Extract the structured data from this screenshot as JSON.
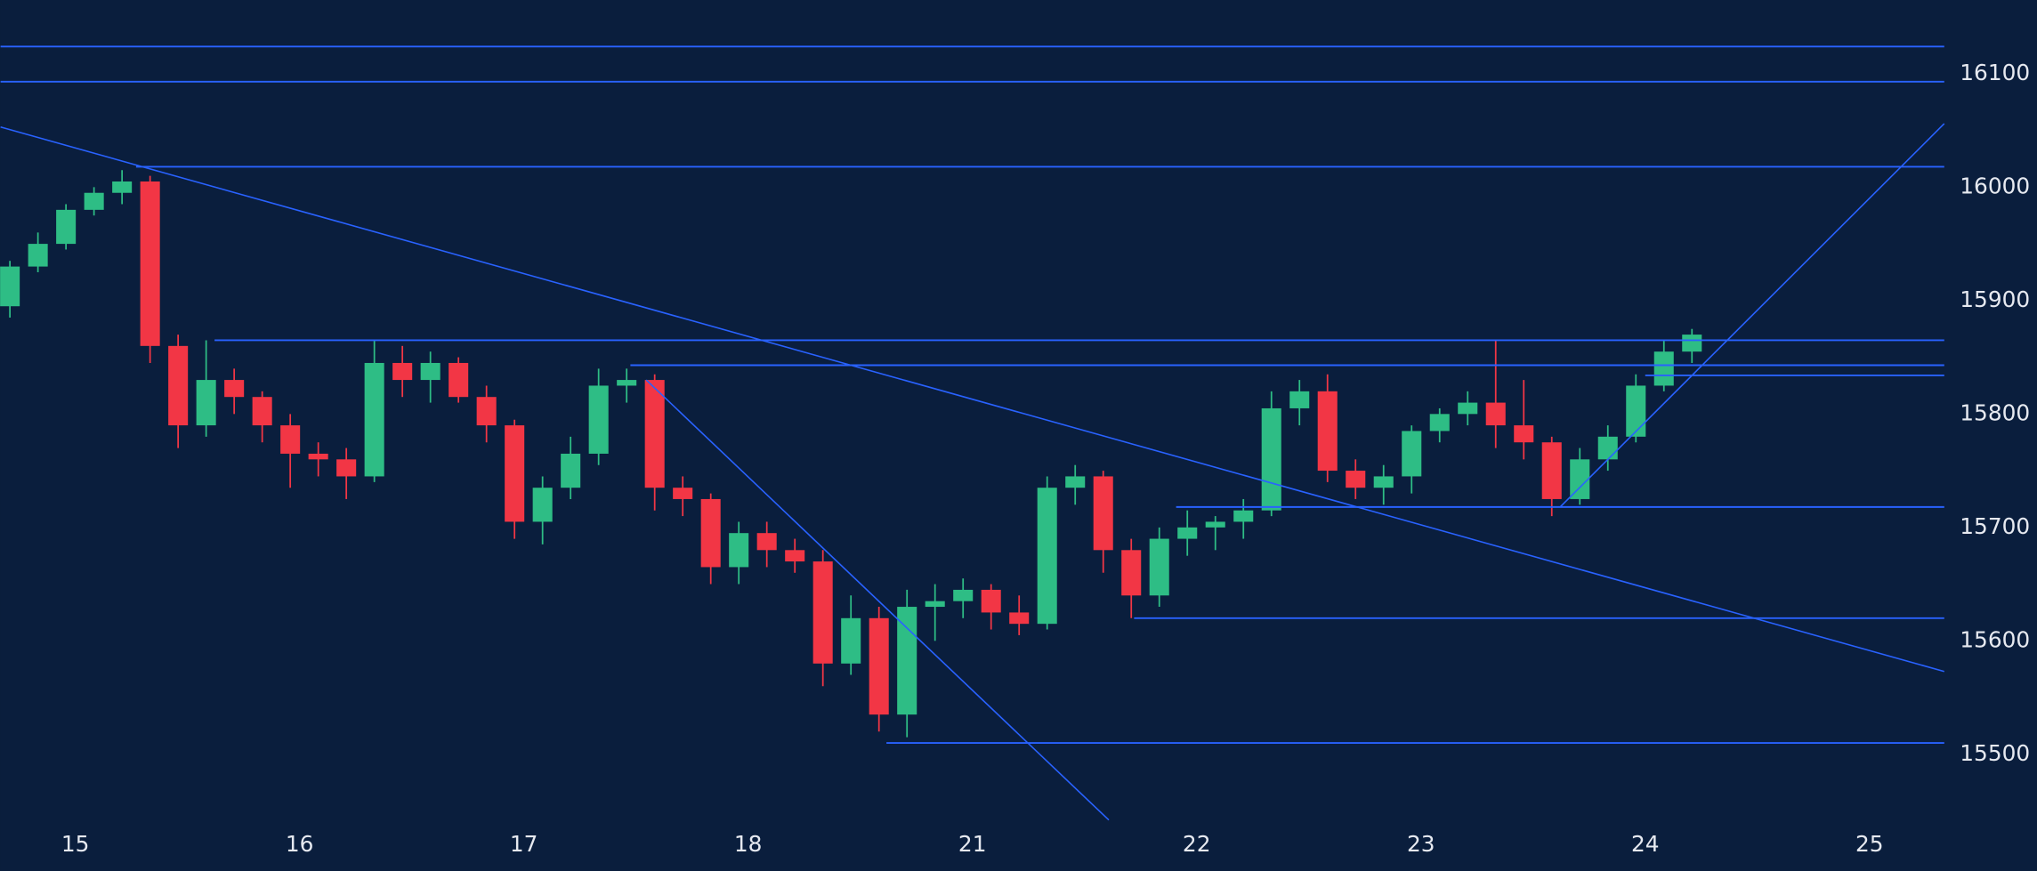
{
  "chart_data": {
    "type": "candlestick",
    "x": [
      -7,
      -4,
      -1,
      2,
      5,
      8,
      11,
      14,
      17,
      20,
      23,
      26,
      29,
      32,
      35,
      38,
      41,
      44,
      47,
      50,
      53,
      56,
      59,
      62,
      65,
      68,
      71,
      74,
      77,
      80,
      83,
      86,
      89,
      92,
      95,
      98,
      101,
      104,
      107,
      110,
      113,
      116,
      119,
      122,
      125,
      128,
      131,
      134,
      137,
      140,
      143,
      146,
      149,
      152,
      155,
      158,
      161,
      164,
      167,
      170,
      173
    ],
    "candles": [
      [
        15895,
        15935,
        15885,
        15930
      ],
      [
        15930,
        15960,
        15925,
        15950
      ],
      [
        15950,
        15985,
        15945,
        15980
      ],
      [
        15980,
        16000,
        15975,
        15995
      ],
      [
        15995,
        16015,
        15985,
        16005
      ],
      [
        16005,
        16010,
        15845,
        15860
      ],
      [
        15860,
        15870,
        15770,
        15790
      ],
      [
        15790,
        15865,
        15780,
        15830
      ],
      [
        15830,
        15840,
        15800,
        15815
      ],
      [
        15815,
        15820,
        15775,
        15790
      ],
      [
        15790,
        15800,
        15735,
        15765
      ],
      [
        15765,
        15775,
        15745,
        15760
      ],
      [
        15760,
        15770,
        15725,
        15745
      ],
      [
        15745,
        15865,
        15740,
        15845
      ],
      [
        15845,
        15860,
        15815,
        15830
      ],
      [
        15830,
        15855,
        15810,
        15845
      ],
      [
        15845,
        15850,
        15810,
        15815
      ],
      [
        15815,
        15825,
        15775,
        15790
      ],
      [
        15790,
        15795,
        15690,
        15705
      ],
      [
        15705,
        15745,
        15685,
        15735
      ],
      [
        15735,
        15780,
        15725,
        15765
      ],
      [
        15765,
        15840,
        15755,
        15825
      ],
      [
        15825,
        15840,
        15810,
        15830
      ],
      [
        15830,
        15835,
        15715,
        15735
      ],
      [
        15735,
        15745,
        15710,
        15725
      ],
      [
        15725,
        15730,
        15650,
        15665
      ],
      [
        15665,
        15705,
        15650,
        15695
      ],
      [
        15695,
        15705,
        15665,
        15680
      ],
      [
        15680,
        15690,
        15660,
        15670
      ],
      [
        15670,
        15680,
        15560,
        15580
      ],
      [
        15580,
        15640,
        15570,
        15620
      ],
      [
        15620,
        15630,
        15520,
        15535
      ],
      [
        15535,
        15645,
        15515,
        15630
      ],
      [
        15630,
        15650,
        15600,
        15635
      ],
      [
        15635,
        15655,
        15620,
        15645
      ],
      [
        15645,
        15650,
        15610,
        15625
      ],
      [
        15625,
        15640,
        15605,
        15615
      ],
      [
        15615,
        15745,
        15610,
        15735
      ],
      [
        15735,
        15755,
        15720,
        15745
      ],
      [
        15745,
        15750,
        15660,
        15680
      ],
      [
        15680,
        15690,
        15620,
        15640
      ],
      [
        15640,
        15700,
        15630,
        15690
      ],
      [
        15690,
        15715,
        15675,
        15700
      ],
      [
        15700,
        15710,
        15680,
        15705
      ],
      [
        15705,
        15725,
        15690,
        15715
      ],
      [
        15715,
        15820,
        15710,
        15805
      ],
      [
        15805,
        15830,
        15790,
        15820
      ],
      [
        15820,
        15835,
        15740,
        15750
      ],
      [
        15750,
        15760,
        15725,
        15735
      ],
      [
        15735,
        15755,
        15720,
        15745
      ],
      [
        15745,
        15790,
        15730,
        15785
      ],
      [
        15785,
        15805,
        15775,
        15800
      ],
      [
        15800,
        15820,
        15790,
        15810
      ],
      [
        15810,
        15865,
        15770,
        15790
      ],
      [
        15790,
        15830,
        15760,
        15775
      ],
      [
        15775,
        15780,
        15710,
        15725
      ],
      [
        15725,
        15770,
        15720,
        15760
      ],
      [
        15760,
        15790,
        15750,
        15780
      ],
      [
        15780,
        15835,
        15775,
        15825
      ],
      [
        15825,
        15865,
        15820,
        15855
      ],
      [
        15855,
        15875,
        15845,
        15870
      ]
    ],
    "up_color": "#2ebd85",
    "down_color": "#f23645",
    "line_color": "#2962ff",
    "levels": [
      {
        "start": -8,
        "value": 16124
      },
      {
        "start": -8,
        "value": 16093
      },
      {
        "start": 6.5,
        "value": 16018
      },
      {
        "start": 14.9,
        "value": 15865
      },
      {
        "start": 59.4,
        "value": 15843
      },
      {
        "start": 168,
        "value": 15834
      },
      {
        "start": 117.8,
        "value": 15718
      },
      {
        "start": 113.3,
        "value": 15620
      },
      {
        "start": 86.8,
        "value": 15510
      }
    ],
    "trendlines": [
      {
        "x": [
          -8,
          200
        ],
        "y": [
          16053,
          15573
        ]
      },
      {
        "x": [
          61.1,
          110.6
        ],
        "y": [
          15830,
          15442
        ]
      },
      {
        "x": [
          158.9,
          200
        ],
        "y": [
          15718,
          16056
        ]
      }
    ],
    "xlim": [
      -8,
      200
    ],
    "xticks": [
      {
        "value": 0,
        "label": "15"
      },
      {
        "value": 24,
        "label": "16"
      },
      {
        "value": 48,
        "label": "17"
      },
      {
        "value": 72,
        "label": "18"
      },
      {
        "value": 96,
        "label": "21"
      },
      {
        "value": 120,
        "label": "22"
      },
      {
        "value": 144,
        "label": "23"
      },
      {
        "value": 168,
        "label": "24"
      },
      {
        "value": 192,
        "label": "25"
      }
    ],
    "ylim": [
      15444,
      16165
    ],
    "yticks": [
      15500,
      15600,
      15700,
      15800,
      15900,
      16000,
      16100
    ]
  }
}
